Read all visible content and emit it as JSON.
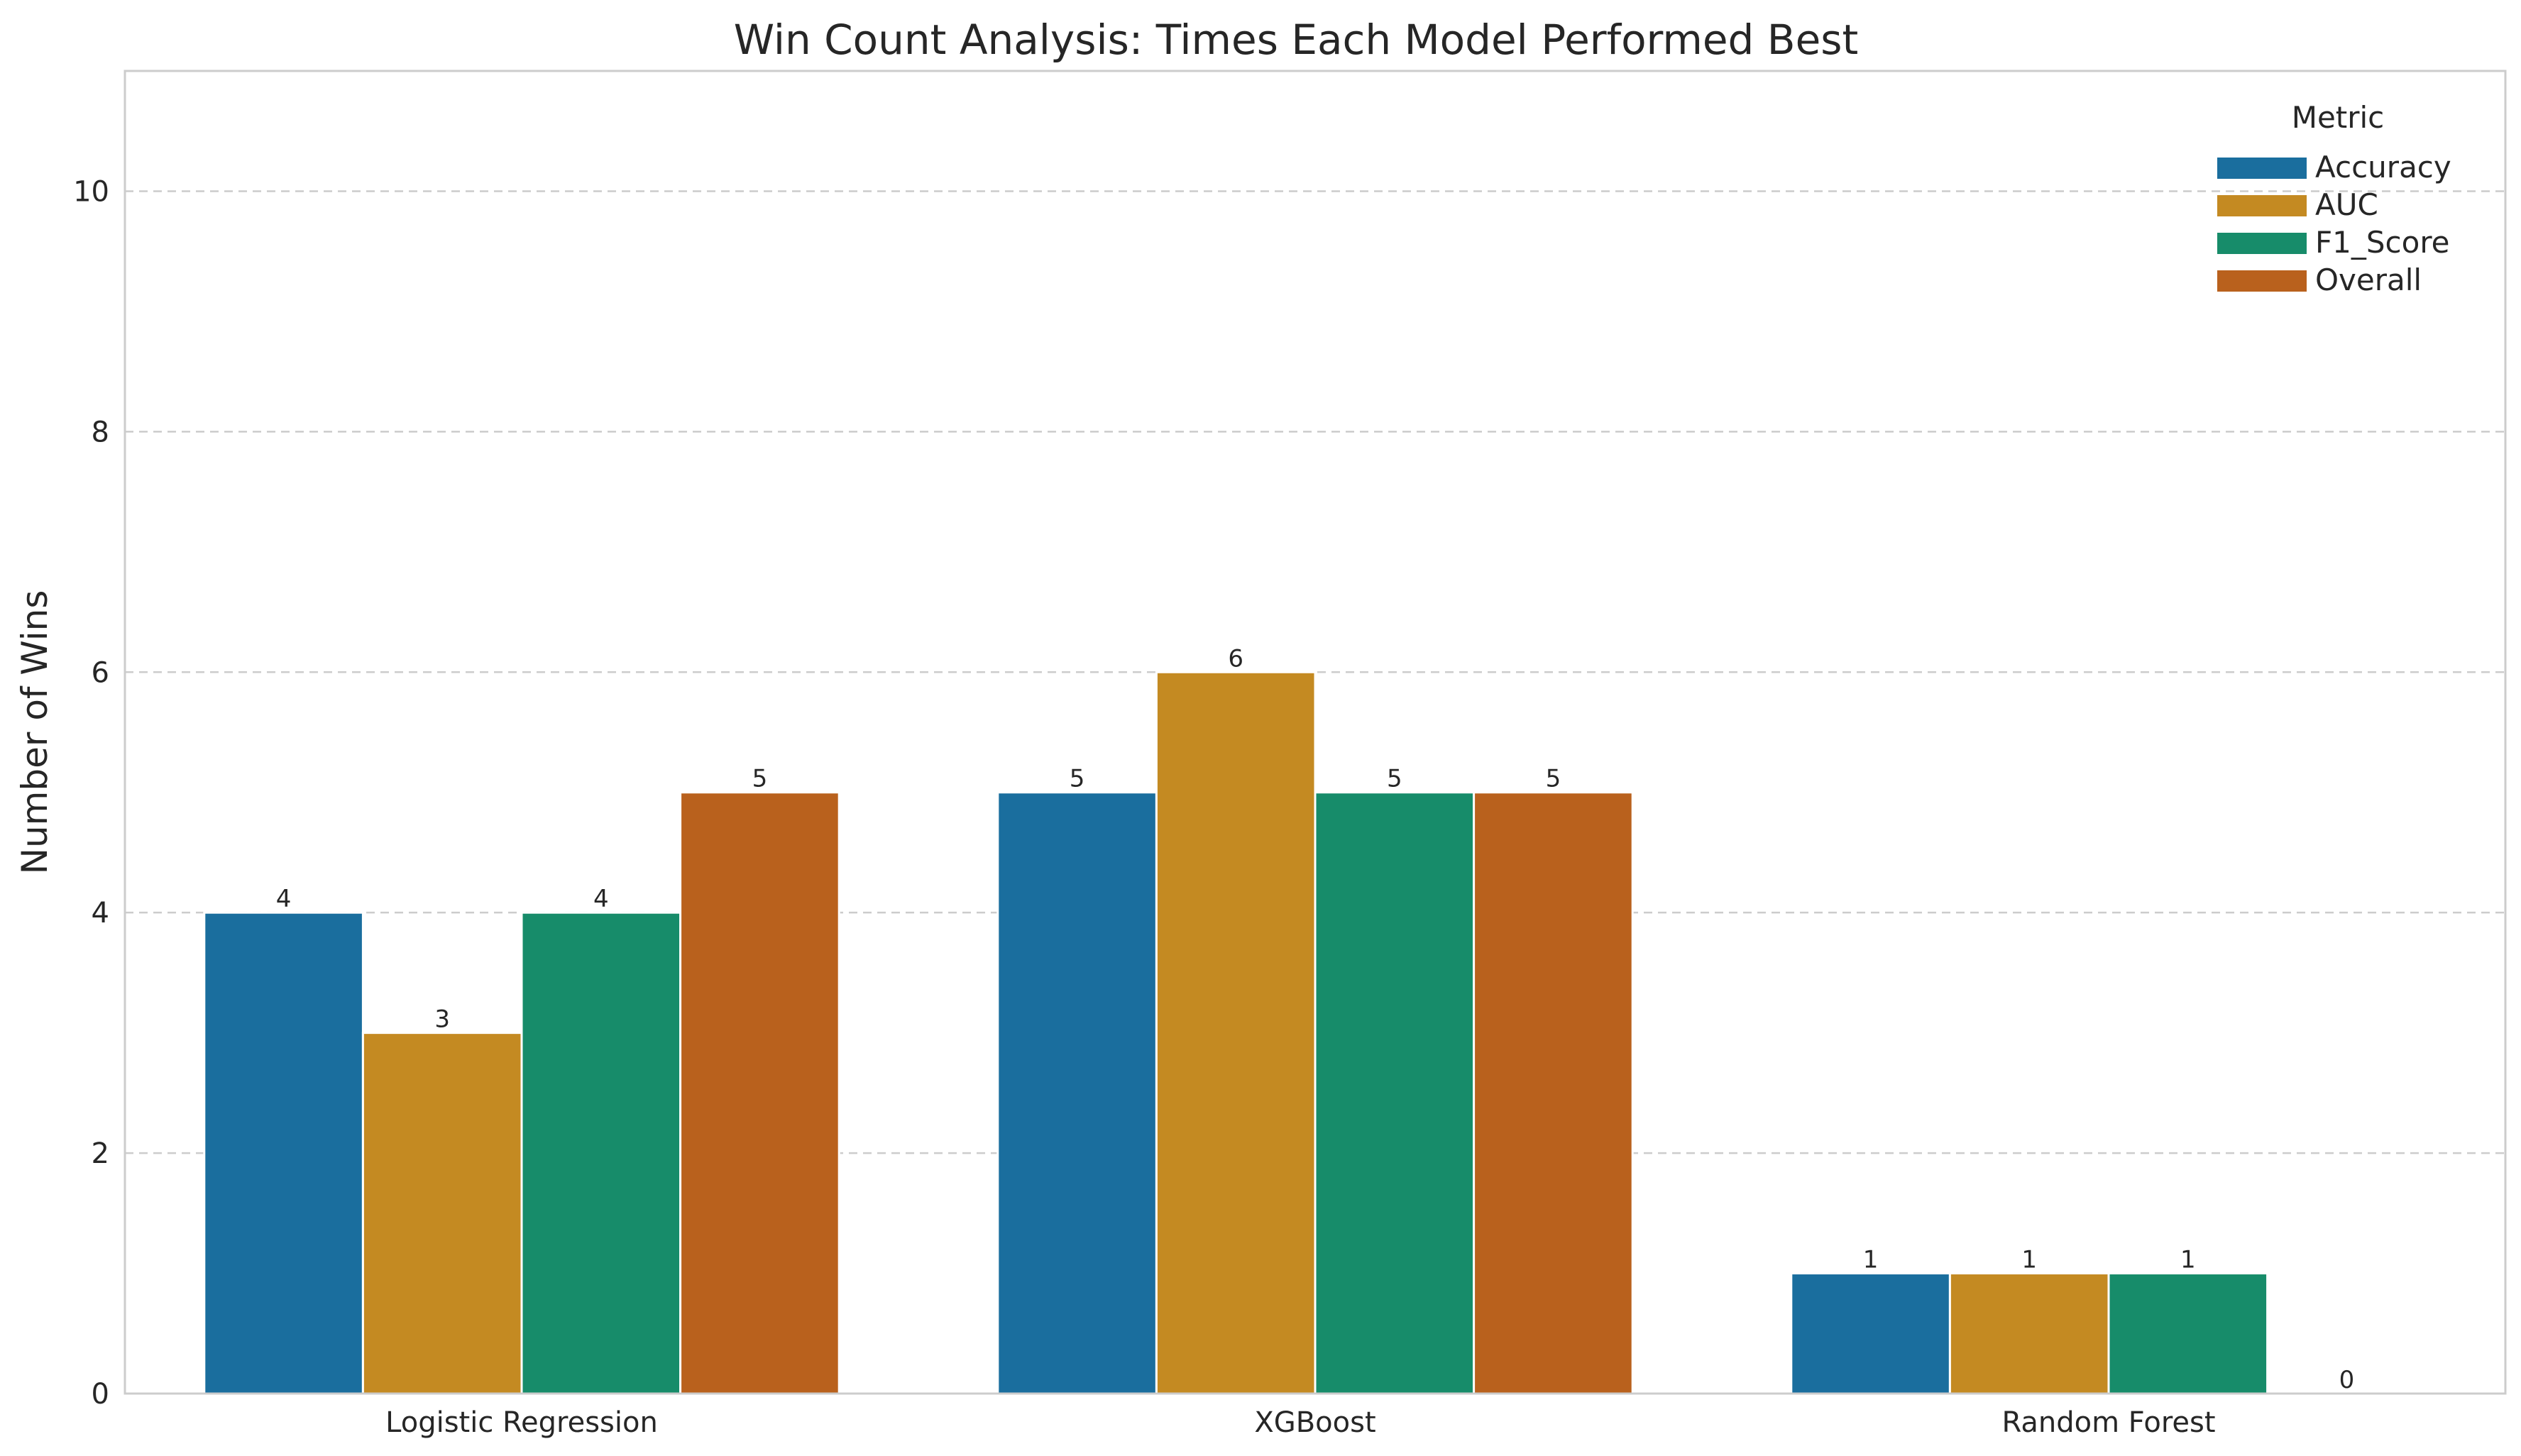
{
  "chart_data": {
    "type": "bar",
    "title": "Win Count Analysis: Times Each Model Performed Best",
    "xlabel": "",
    "ylabel": "Number of Wins",
    "ylim": [
      0,
      11
    ],
    "yticks": [
      0,
      2,
      4,
      6,
      8,
      10
    ],
    "grid": "y-dashed",
    "categories": [
      "Logistic Regression",
      "XGBoost",
      "Random Forest"
    ],
    "legend": {
      "title": "Metric",
      "placement": "top-right"
    },
    "series": [
      {
        "name": "Accuracy",
        "color": "#1a6e9e",
        "values": [
          4,
          5,
          1
        ]
      },
      {
        "name": "AUC",
        "color": "#c48a22",
        "values": [
          3,
          6,
          1
        ]
      },
      {
        "name": "F1_Score",
        "color": "#178c6a",
        "values": [
          4,
          5,
          1
        ]
      },
      {
        "name": "Overall",
        "color": "#b9611d",
        "values": [
          5,
          5,
          0
        ]
      }
    ]
  }
}
